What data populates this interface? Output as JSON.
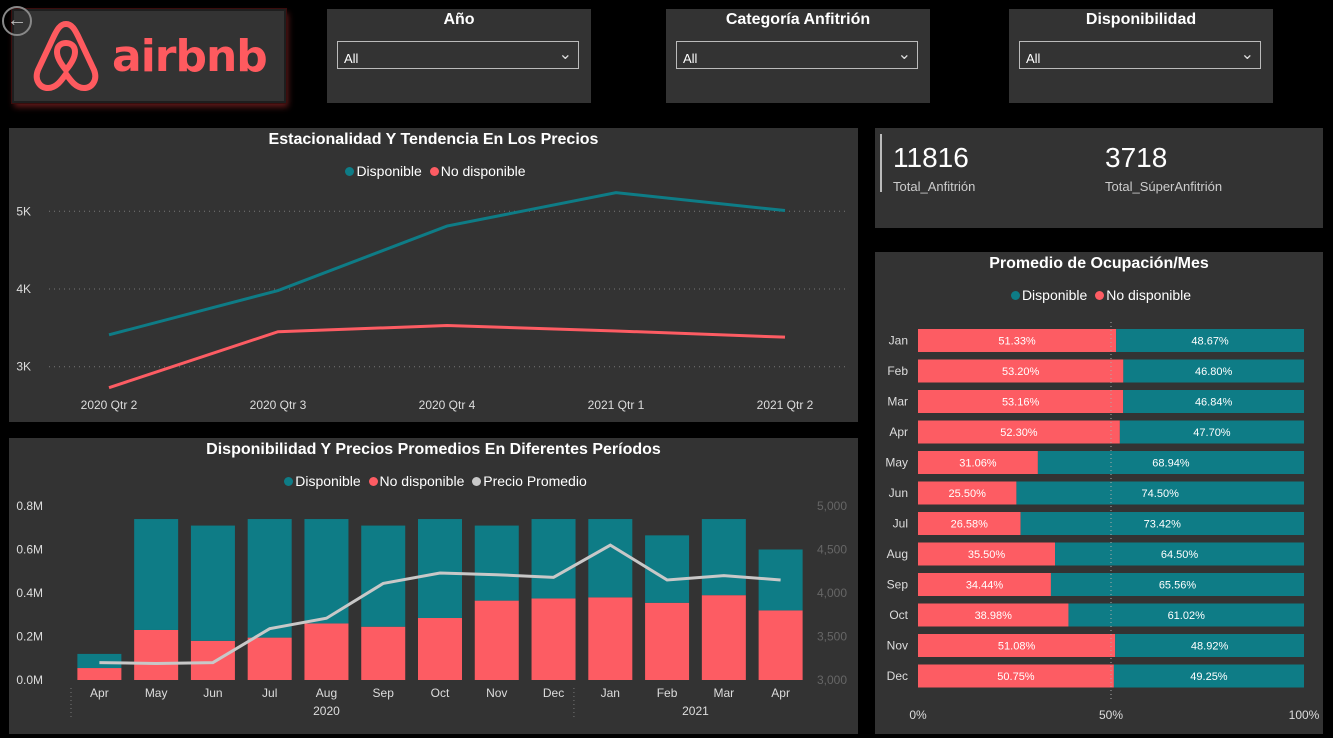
{
  "nav": {
    "back_icon": "back-arrow-icon"
  },
  "logo": {
    "text": "airbnb",
    "color": "#FF5A5F"
  },
  "filters": [
    {
      "title": "Año",
      "value": "All"
    },
    {
      "title": "Categoría Anfitrión",
      "value": "All"
    },
    {
      "title": "Disponibilidad",
      "value": "All"
    }
  ],
  "colors": {
    "disponible": "#0E7C86",
    "no_disponible": "#FD5C63",
    "precio": "#C8C8C8",
    "panel": "#333333"
  },
  "kpis": [
    {
      "value": "11816",
      "label": "Total_Anfitrión"
    },
    {
      "value": "3718",
      "label": "Total_SúperAnfitrión"
    }
  ],
  "trend": {
    "title": "Estacionalidad Y Tendencia En Los Precios",
    "legend": [
      "Disponible",
      "No disponible"
    ]
  },
  "periods": {
    "title": "Disponibilidad Y Precios Promedios En Diferentes Períodos",
    "legend": [
      "Disponible",
      "No disponible",
      "Precio Promedio"
    ]
  },
  "occupancy": {
    "title": "Promedio de Ocupación/Mes",
    "legend": [
      "Disponible",
      "No disponible"
    ]
  },
  "chart_data": [
    {
      "type": "line",
      "title": "Estacionalidad Y Tendencia En Los Precios",
      "x": [
        "2020 Qtr 2",
        "2020 Qtr 3",
        "2020 Qtr 4",
        "2021 Qtr 1",
        "2021 Qtr 2"
      ],
      "y_ticks": [
        "3K",
        "4K",
        "5K"
      ],
      "ylim": [
        2700,
        5300
      ],
      "grid": true,
      "legend_position": "top",
      "series": [
        {
          "name": "Disponible",
          "values": [
            3410,
            3980,
            4810,
            5240,
            5010
          ]
        },
        {
          "name": "No disponible",
          "values": [
            2730,
            3450,
            3530,
            3460,
            3380
          ]
        }
      ]
    },
    {
      "type": "bar",
      "stacked": true,
      "title": "Disponibilidad Y Precios Promedios En Diferentes Períodos",
      "categories": [
        "Apr",
        "May",
        "Jun",
        "Jul",
        "Aug",
        "Sep",
        "Oct",
        "Nov",
        "Dec",
        "Jan",
        "Feb",
        "Mar",
        "Apr"
      ],
      "year_labels": [
        {
          "label": "2020",
          "span": [
            0,
            8
          ]
        },
        {
          "label": "2021",
          "span": [
            9,
            12
          ]
        }
      ],
      "y_ticks": [
        "0.0M",
        "0.2M",
        "0.4M",
        "0.6M",
        "0.8M"
      ],
      "ylim": [
        0,
        0.8
      ],
      "y2_ticks": [
        "3,000",
        "3,500",
        "4,000",
        "4,500",
        "5,000"
      ],
      "y2lim": [
        3000,
        5000
      ],
      "legend_position": "top",
      "series": [
        {
          "name": "No disponible",
          "values": [
            0.055,
            0.23,
            0.18,
            0.195,
            0.26,
            0.245,
            0.285,
            0.365,
            0.375,
            0.38,
            0.355,
            0.39,
            0.32
          ]
        },
        {
          "name": "Disponible",
          "values": [
            0.065,
            0.51,
            0.53,
            0.545,
            0.48,
            0.465,
            0.455,
            0.345,
            0.365,
            0.36,
            0.31,
            0.35,
            0.28
          ]
        },
        {
          "name": "Precio Promedio",
          "axis": "secondary",
          "values": [
            3200,
            3190,
            3200,
            3590,
            3710,
            4110,
            4230,
            4210,
            4180,
            4550,
            4150,
            4200,
            4150
          ]
        }
      ]
    },
    {
      "type": "bar",
      "orientation": "horizontal",
      "stacked_100": true,
      "title": "Promedio de Ocupación/Mes",
      "categories": [
        "Jan",
        "Feb",
        "Mar",
        "Apr",
        "May",
        "Jun",
        "Jul",
        "Aug",
        "Sep",
        "Oct",
        "Nov",
        "Dec"
      ],
      "x_ticks": [
        "0%",
        "50%",
        "100%"
      ],
      "legend_position": "top",
      "series": [
        {
          "name": "No disponible",
          "values": [
            51.33,
            53.2,
            53.16,
            52.3,
            31.06,
            25.5,
            26.58,
            35.5,
            34.44,
            38.98,
            51.08,
            50.75
          ],
          "labels": [
            "51.33%",
            "53.20%",
            "53.16%",
            "52.30%",
            "31.06%",
            "25.50%",
            "26.58%",
            "35.50%",
            "34.44%",
            "38.98%",
            "51.08%",
            "50.75%"
          ]
        },
        {
          "name": "Disponible",
          "values": [
            48.67,
            46.8,
            46.84,
            47.7,
            68.94,
            74.5,
            73.42,
            64.5,
            65.56,
            61.02,
            48.92,
            49.25
          ],
          "labels": [
            "48.67%",
            "46.80%",
            "46.84%",
            "47.70%",
            "68.94%",
            "74.50%",
            "73.42%",
            "64.50%",
            "65.56%",
            "61.02%",
            "48.92%",
            "49.25%"
          ]
        }
      ]
    }
  ]
}
